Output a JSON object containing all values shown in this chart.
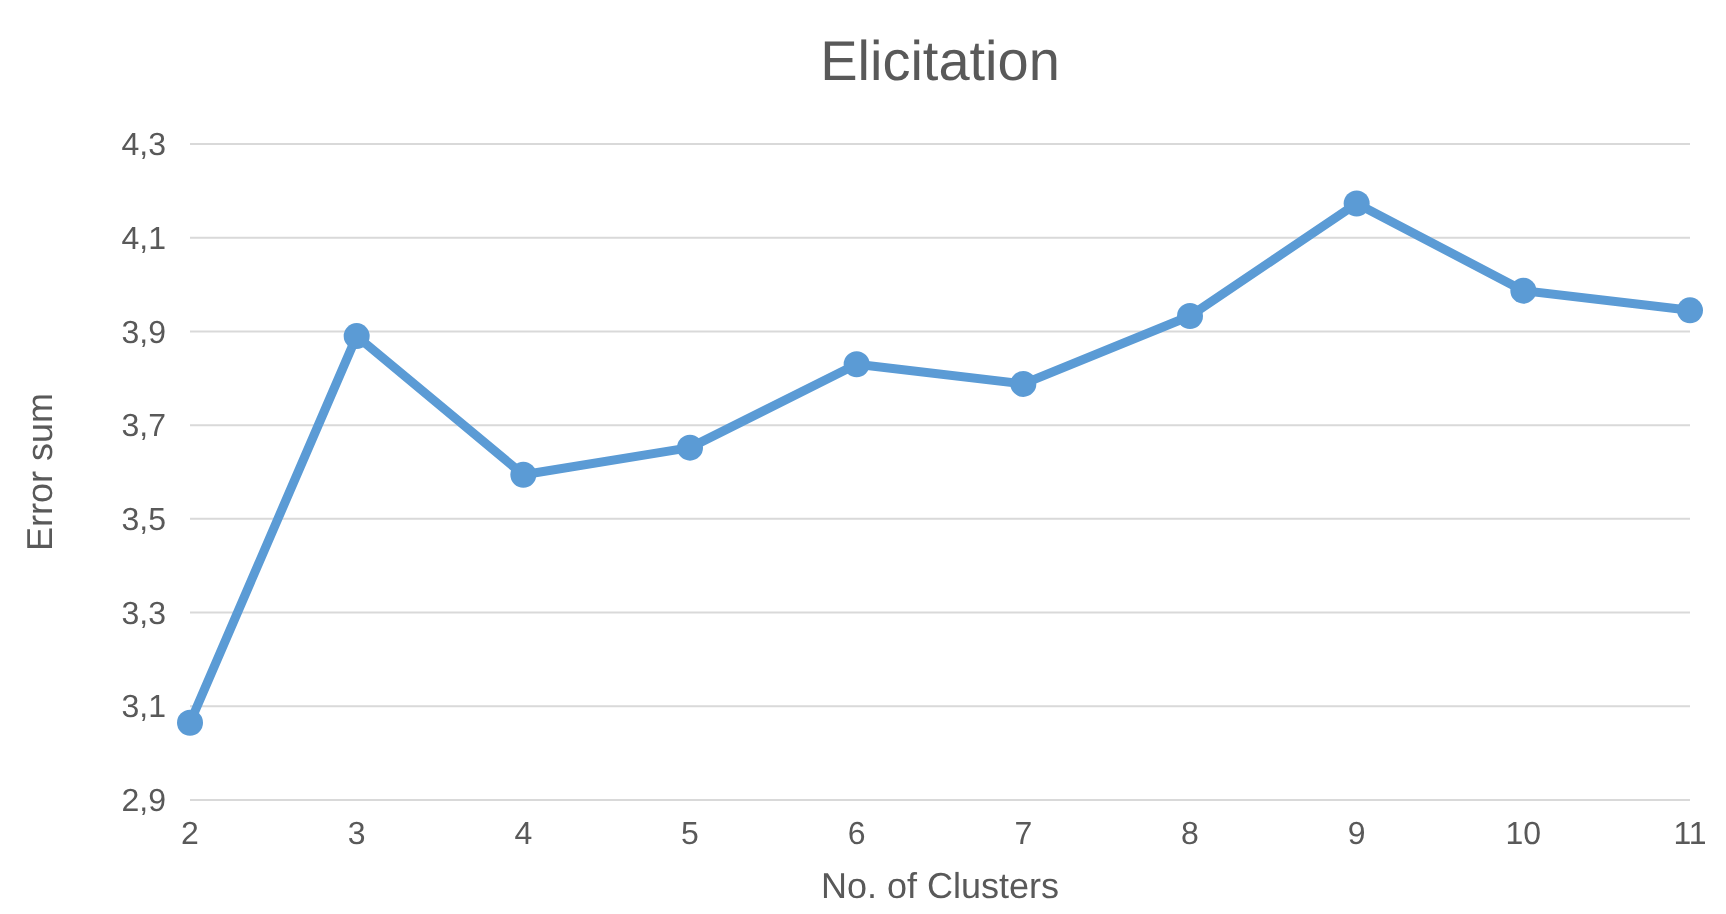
{
  "chart_data": {
    "type": "line",
    "title": "Elicitation",
    "xlabel": "No. of Clusters",
    "ylabel": "Error sum",
    "categories": [
      "2",
      "3",
      "4",
      "5",
      "6",
      "7",
      "8",
      "9",
      "10",
      "11"
    ],
    "series": [
      {
        "color": "#5b9bd5",
        "values": [
          3.065,
          3.89,
          3.594,
          3.652,
          3.83,
          3.788,
          3.933,
          4.173,
          3.987,
          3.945
        ]
      }
    ],
    "ylim": [
      2.9,
      4.3
    ],
    "yticks": [
      {
        "value": 2.9,
        "label": "2,9"
      },
      {
        "value": 3.1,
        "label": "3,1"
      },
      {
        "value": 3.3,
        "label": "3,3"
      },
      {
        "value": 3.5,
        "label": "3,5"
      },
      {
        "value": 3.7,
        "label": "3,7"
      },
      {
        "value": 3.9,
        "label": "3,9"
      },
      {
        "value": 4.1,
        "label": "4,1"
      },
      {
        "value": 4.3,
        "label": "4,3"
      }
    ],
    "grid": "y",
    "marker": "circle",
    "line_style": "solid"
  }
}
